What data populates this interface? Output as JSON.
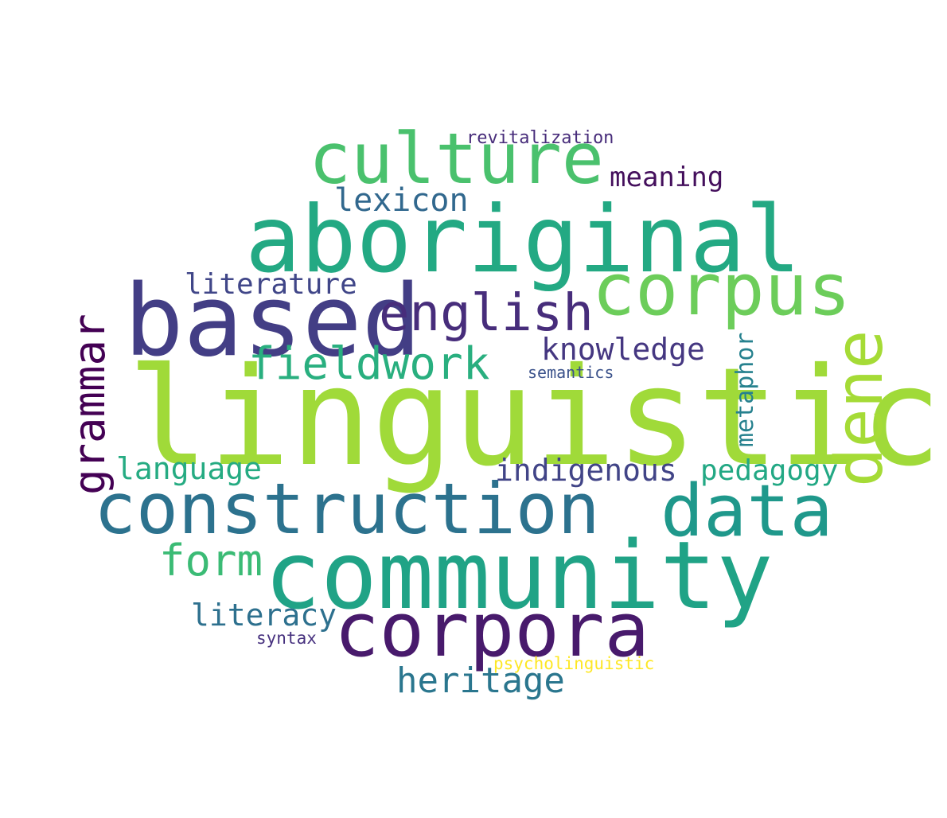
{
  "words": {
    "linguistic": {
      "text": "linguistic",
      "color": "#a0da39"
    },
    "aboriginal": {
      "text": "aboriginal",
      "color": "#23a983"
    },
    "based": {
      "text": "based",
      "color": "#433e85"
    },
    "community": {
      "text": "community",
      "color": "#20a386"
    },
    "construction": {
      "text": "construction",
      "color": "#2c728e"
    },
    "corpora": {
      "text": "corpora",
      "color": "#481a6c"
    },
    "culture": {
      "text": "culture",
      "color": "#4ac16d"
    },
    "corpus": {
      "text": "corpus",
      "color": "#6ccd5a"
    },
    "data": {
      "text": "data",
      "color": "#1f988b"
    },
    "dene": {
      "text": "dene",
      "color": "#a5db36"
    },
    "english": {
      "text": "english",
      "color": "#472d7b"
    },
    "fieldwork": {
      "text": "fieldwork",
      "color": "#29af7f"
    },
    "grammar": {
      "text": "grammar",
      "color": "#440154"
    },
    "form": {
      "text": "form",
      "color": "#3bbb75"
    },
    "heritage": {
      "text": "heritage",
      "color": "#2a768e"
    },
    "knowledge": {
      "text": "knowledge",
      "color": "#453781"
    },
    "lexicon": {
      "text": "lexicon",
      "color": "#31688e"
    },
    "meaning": {
      "text": "meaning",
      "color": "#440f5c"
    },
    "literature": {
      "text": "literature",
      "color": "#404688"
    },
    "language": {
      "text": "language",
      "color": "#25ab82"
    },
    "indigenous": {
      "text": "indigenous",
      "color": "#414487"
    },
    "pedagogy": {
      "text": "pedagogy",
      "color": "#22a884"
    },
    "metaphor": {
      "text": "metaphor",
      "color": "#26818e"
    },
    "literacy": {
      "text": "literacy",
      "color": "#2d708e"
    },
    "revitalization": {
      "text": "revitalization",
      "color": "#472c7a"
    },
    "semantics": {
      "text": "semantics",
      "color": "#3b528b"
    },
    "syntax": {
      "text": "syntax",
      "color": "#46307e"
    },
    "psycholinguistic": {
      "text": "psycholinguistic",
      "color": "#fde725"
    }
  }
}
